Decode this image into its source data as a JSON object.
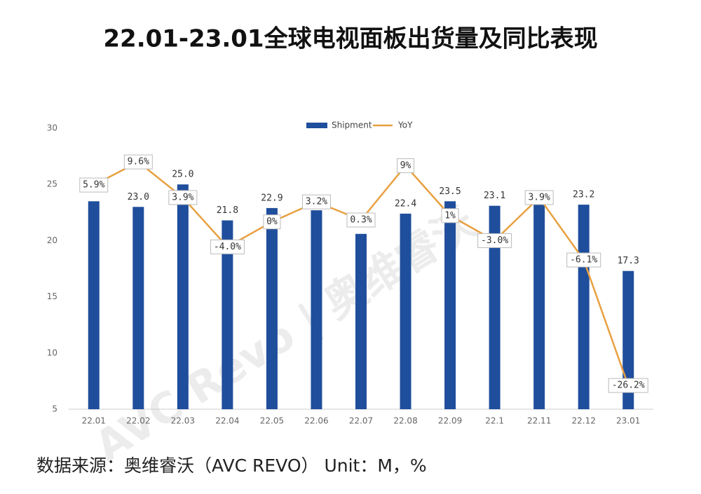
{
  "chart_data": {
    "type": "bar-line",
    "title": "22.01-23.01全球电视面板出货量及同比表现",
    "source": "数据来源：奥维睿沃（AVC REVO）   Unit：M，%",
    "watermark": "AVC Revo | 奥维睿沃",
    "categories": [
      "22.01",
      "22.02",
      "22.03",
      "22.04",
      "22.05",
      "22.06",
      "22.07",
      "22.08",
      "22.09",
      "22.1",
      "22.11",
      "22.12",
      "23.01"
    ],
    "ylim": [
      5,
      30
    ],
    "yticks": [
      5,
      10,
      15,
      20,
      25,
      30
    ],
    "y2lim": [
      -30,
      15
    ],
    "legend": "top",
    "series": [
      {
        "name": "Shipment",
        "color": "#1f4e9c",
        "values": [
          23.5,
          23.0,
          25.0,
          21.8,
          22.9,
          22.7,
          20.6,
          22.4,
          23.5,
          23.1,
          23.2,
          23.2,
          17.3
        ],
        "value_labels": [
          null,
          "23.0",
          "25.0",
          "21.8",
          "22.9",
          null,
          null,
          "22.4",
          "23.5",
          "23.1",
          null,
          "23.2",
          "17.3"
        ]
      },
      {
        "name": "YoY",
        "color": "#e8a040",
        "axis": "y2",
        "values": [
          5.9,
          9.6,
          3.9,
          -4.0,
          0,
          3.2,
          0.3,
          9,
          1,
          -3.0,
          3.9,
          -6.1,
          -26.2
        ],
        "value_labels": [
          "5.9%",
          "9.6%",
          "3.9%",
          "-4.0%",
          "0%",
          "3.2%",
          "0.3%",
          "9%",
          "1%",
          "-3.0%",
          "3.9%",
          "-6.1%",
          "-26.2%"
        ]
      }
    ]
  }
}
